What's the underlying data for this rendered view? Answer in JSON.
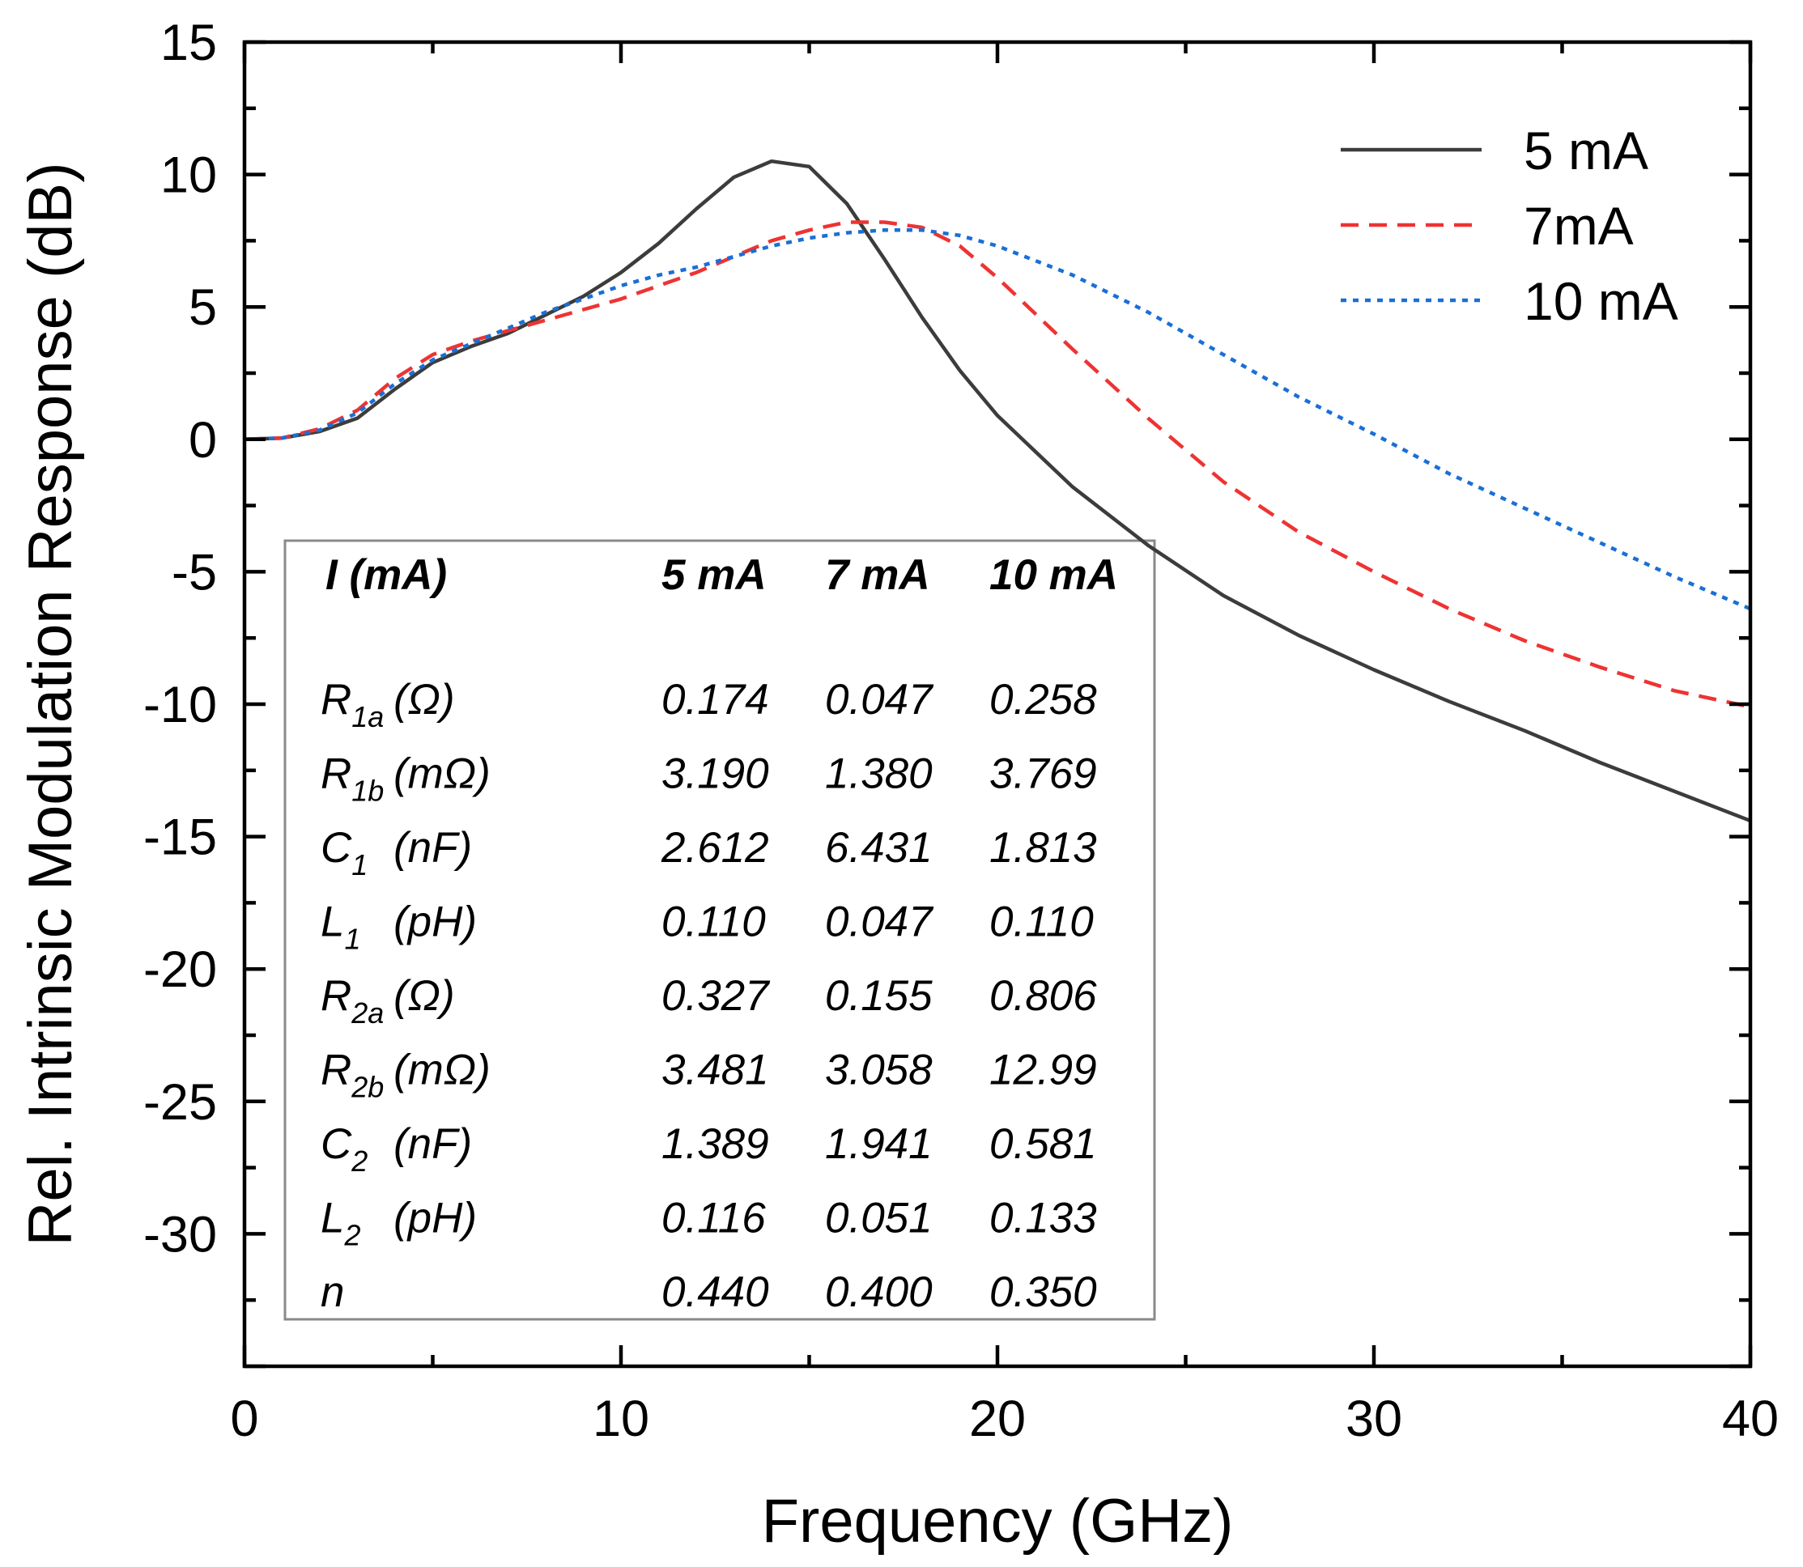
{
  "chart_data": {
    "type": "line",
    "xlabel": "Frequency (GHz)",
    "ylabel": "Rel. Intrinsic Modulation Response (dB)",
    "xlim": [
      0,
      40
    ],
    "ylim": [
      -35,
      15
    ],
    "xticks": [
      0,
      10,
      20,
      30,
      40
    ],
    "yticks": [
      15,
      10,
      5,
      0,
      -5,
      -10,
      -15,
      -20,
      -25,
      -30
    ],
    "grid": false,
    "legend_position": "top-right",
    "x": [
      0,
      1,
      2,
      3,
      4,
      5,
      6,
      7,
      8,
      9,
      10,
      11,
      12,
      13,
      14,
      15,
      16,
      17,
      18,
      19,
      20,
      22,
      24,
      26,
      28,
      30,
      32,
      34,
      36,
      38,
      40
    ],
    "series": [
      {
        "name": "5 mA",
        "color": "#3c3c3c",
        "dash": "solid",
        "values": [
          0,
          0.05,
          0.3,
          0.8,
          1.9,
          2.9,
          3.5,
          4.0,
          4.7,
          5.4,
          6.3,
          7.4,
          8.7,
          9.9,
          10.5,
          10.3,
          8.9,
          6.8,
          4.6,
          2.6,
          0.9,
          -1.8,
          -4.0,
          -5.9,
          -7.4,
          -8.7,
          -9.9,
          -11.0,
          -12.2,
          -13.3,
          -14.4
        ]
      },
      {
        "name": "7mA",
        "color": "#ee3333",
        "dash": "dashed",
        "values": [
          0,
          0.05,
          0.4,
          1.1,
          2.3,
          3.2,
          3.7,
          4.1,
          4.5,
          4.9,
          5.3,
          5.8,
          6.3,
          6.9,
          7.5,
          7.9,
          8.2,
          8.2,
          8.0,
          7.3,
          6.1,
          3.4,
          0.8,
          -1.6,
          -3.5,
          -5.0,
          -6.4,
          -7.6,
          -8.6,
          -9.5,
          -10.1
        ]
      },
      {
        "name": "10 mA",
        "color": "#1a6fd6",
        "dash": "dotted",
        "values": [
          0,
          0.05,
          0.35,
          1.0,
          2.1,
          3.0,
          3.6,
          4.2,
          4.8,
          5.3,
          5.8,
          6.2,
          6.5,
          6.9,
          7.3,
          7.6,
          7.8,
          7.9,
          7.9,
          7.7,
          7.3,
          6.2,
          4.8,
          3.2,
          1.6,
          0.2,
          -1.3,
          -2.6,
          -3.9,
          -5.2,
          -6.4
        ]
      }
    ],
    "table": {
      "header_label": "I (mA)",
      "columns": [
        "5 mA",
        "7 mA",
        "10 mA"
      ],
      "rows": [
        {
          "sym": "R",
          "sub": "1a",
          "unit": "(Ω)",
          "values": [
            "0.174",
            "0.047",
            "0.258"
          ]
        },
        {
          "sym": "R",
          "sub": "1b",
          "unit": "(mΩ)",
          "values": [
            "3.190",
            "1.380",
            "3.769"
          ]
        },
        {
          "sym": "C",
          "sub": "1",
          "unit": "(nF)",
          "values": [
            "2.612",
            "6.431",
            "1.813"
          ]
        },
        {
          "sym": "L",
          "sub": "1",
          "unit": "(pH)",
          "values": [
            "0.110",
            "0.047",
            "0.110"
          ]
        },
        {
          "sym": "R",
          "sub": "2a",
          "unit": "(Ω)",
          "values": [
            "0.327",
            "0.155",
            "0.806"
          ]
        },
        {
          "sym": "R",
          "sub": "2b",
          "unit": "(mΩ)",
          "values": [
            "3.481",
            "3.058",
            "12.99"
          ]
        },
        {
          "sym": "C",
          "sub": "2",
          "unit": "(nF)",
          "values": [
            "1.389",
            "1.941",
            "0.581"
          ]
        },
        {
          "sym": "L",
          "sub": "2",
          "unit": "(pH)",
          "values": [
            "0.116",
            "0.051",
            "0.133"
          ]
        },
        {
          "sym": "n",
          "sub": "",
          "unit": "",
          "values": [
            "0.440",
            "0.400",
            "0.350"
          ]
        }
      ]
    }
  }
}
